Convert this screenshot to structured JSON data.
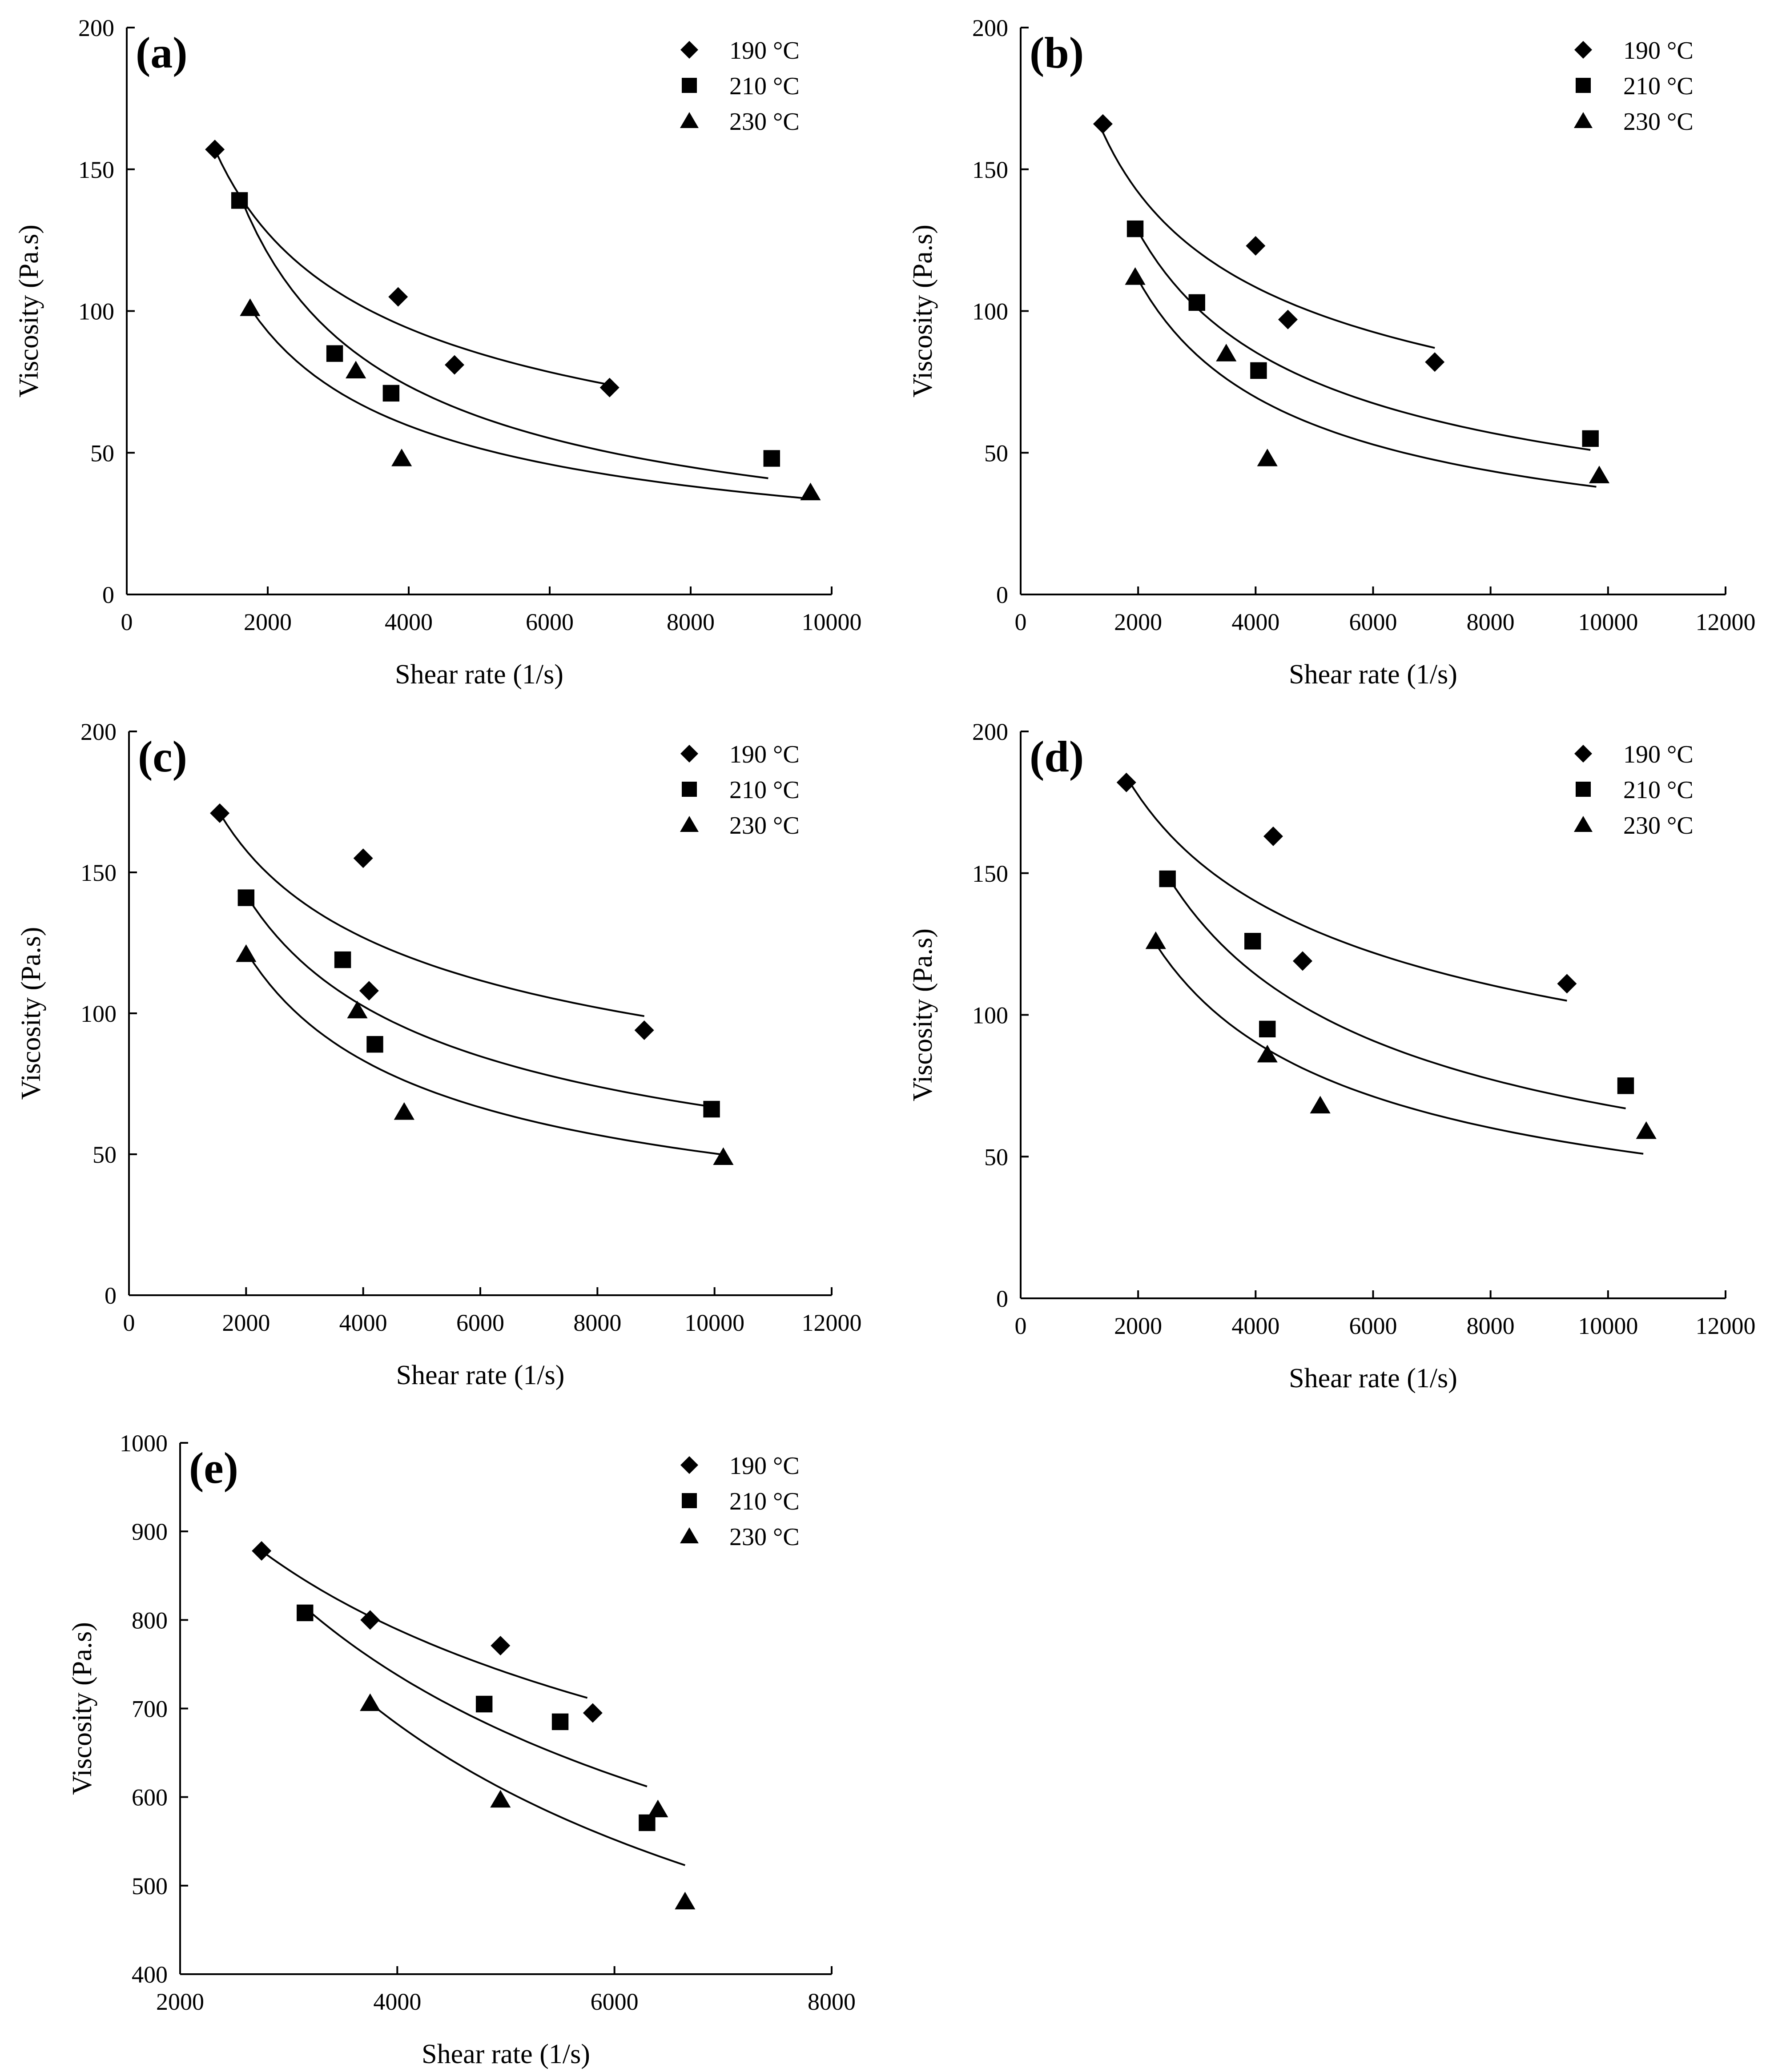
{
  "chart_data": [
    {
      "type": "scatter",
      "panel_label": "(a)",
      "xlabel": "Shear rate (1/s)",
      "ylabel": "Viscosity (Pa.s)",
      "xlim": [
        0,
        10000
      ],
      "ylim": [
        0,
        200
      ],
      "xticks": [
        0,
        2000,
        4000,
        6000,
        8000,
        10000
      ],
      "yticks": [
        0,
        50,
        100,
        150,
        200
      ],
      "legend_position": "top-right",
      "series": [
        {
          "name": "190 °C",
          "marker": "diamond",
          "points": [
            [
              1250,
              157
            ],
            [
              3850,
              105
            ],
            [
              4650,
              81
            ],
            [
              6850,
              73
            ]
          ],
          "fit": [
            [
              1250,
              157
            ],
            [
              6850,
              74
            ]
          ]
        },
        {
          "name": "210 °C",
          "marker": "square",
          "points": [
            [
              1600,
              139
            ],
            [
              2950,
              85
            ],
            [
              3750,
              71
            ],
            [
              9150,
              48
            ]
          ],
          "fit": [
            [
              1600,
              141
            ],
            [
              9100,
              41
            ]
          ]
        },
        {
          "name": "230 °C",
          "marker": "triangle",
          "points": [
            [
              1750,
              101
            ],
            [
              3250,
              79
            ],
            [
              3900,
              48
            ],
            [
              9700,
              36
            ]
          ],
          "fit": [
            [
              1750,
              101
            ],
            [
              9600,
              34
            ]
          ]
        }
      ]
    },
    {
      "type": "scatter",
      "panel_label": "(b)",
      "xlabel": "Shear rate (1/s)",
      "ylabel": "Viscosity (Pa.s)",
      "xlim": [
        0,
        12000
      ],
      "ylim": [
        0,
        200
      ],
      "xticks": [
        0,
        2000,
        4000,
        6000,
        8000,
        10000,
        12000
      ],
      "yticks": [
        0,
        50,
        100,
        150,
        200
      ],
      "legend_position": "top-right",
      "series": [
        {
          "name": "190 °C",
          "marker": "diamond",
          "points": [
            [
              1400,
              166
            ],
            [
              4000,
              123
            ],
            [
              4550,
              97
            ],
            [
              7050,
              82
            ]
          ],
          "fit": [
            [
              1400,
              163
            ],
            [
              7050,
              87
            ]
          ]
        },
        {
          "name": "210 °C",
          "marker": "square",
          "points": [
            [
              1950,
              129
            ],
            [
              3000,
              103
            ],
            [
              4050,
              79
            ],
            [
              9700,
              55
            ]
          ],
          "fit": [
            [
              1950,
              130
            ],
            [
              9700,
              51
            ]
          ]
        },
        {
          "name": "230 °C",
          "marker": "triangle",
          "points": [
            [
              1950,
              112
            ],
            [
              3500,
              85
            ],
            [
              4200,
              48
            ],
            [
              9850,
              42
            ]
          ],
          "fit": [
            [
              1950,
              113
            ],
            [
              9800,
              38
            ]
          ]
        }
      ]
    },
    {
      "type": "scatter",
      "panel_label": "(c)",
      "xlabel": "Shear rate (1/s)",
      "ylabel": "Viscosity (Pa.s)",
      "xlim": [
        0,
        12000
      ],
      "ylim": [
        0,
        200
      ],
      "xticks": [
        0,
        2000,
        4000,
        6000,
        8000,
        10000,
        12000
      ],
      "yticks": [
        0,
        50,
        100,
        150,
        200
      ],
      "legend_position": "top-right",
      "series": [
        {
          "name": "190 °C",
          "marker": "diamond",
          "points": [
            [
              1550,
              171
            ],
            [
              4000,
              155
            ],
            [
              4100,
              108
            ],
            [
              8800,
              94
            ]
          ],
          "fit": [
            [
              1550,
              171
            ],
            [
              8800,
              99
            ]
          ]
        },
        {
          "name": "210 °C",
          "marker": "square",
          "points": [
            [
              2000,
              141
            ],
            [
              3650,
              119
            ],
            [
              4200,
              89
            ],
            [
              9950,
              66
            ]
          ],
          "fit": [
            [
              2000,
              142
            ],
            [
              9900,
              67
            ]
          ]
        },
        {
          "name": "230 °C",
          "marker": "triangle",
          "points": [
            [
              2000,
              121
            ],
            [
              3900,
              101
            ],
            [
              4700,
              65
            ],
            [
              10150,
              49
            ]
          ],
          "fit": [
            [
              2000,
              122
            ],
            [
              10100,
              50
            ]
          ]
        }
      ]
    },
    {
      "type": "scatter",
      "panel_label": "(d)",
      "xlabel": "Shear rate (1/s)",
      "ylabel": "Viscosity (Pa.s)",
      "xlim": [
        0,
        12000
      ],
      "ylim": [
        0,
        200
      ],
      "xticks": [
        0,
        2000,
        4000,
        6000,
        8000,
        10000,
        12000
      ],
      "yticks": [
        0,
        50,
        100,
        150,
        200
      ],
      "legend_position": "top-right",
      "series": [
        {
          "name": "190 °C",
          "marker": "diamond",
          "points": [
            [
              1800,
              182
            ],
            [
              4300,
              163
            ],
            [
              4800,
              119
            ],
            [
              9300,
              111
            ]
          ],
          "fit": [
            [
              1800,
              184
            ],
            [
              9300,
              105
            ]
          ]
        },
        {
          "name": "210 °C",
          "marker": "square",
          "points": [
            [
              2500,
              148
            ],
            [
              3950,
              126
            ],
            [
              4200,
              95
            ],
            [
              10300,
              75
            ]
          ],
          "fit": [
            [
              2500,
              149
            ],
            [
              10300,
              67
            ]
          ]
        },
        {
          "name": "230 °C",
          "marker": "triangle",
          "points": [
            [
              2300,
              126
            ],
            [
              4200,
              86
            ],
            [
              5100,
              68
            ],
            [
              10650,
              59
            ]
          ],
          "fit": [
            [
              2300,
              125
            ],
            [
              10600,
              51
            ]
          ]
        }
      ]
    },
    {
      "type": "scatter",
      "panel_label": "(e)",
      "xlabel": "Shear rate (1/s)",
      "ylabel": "Viscosity (Pa.s)",
      "xlim": [
        2000,
        8000
      ],
      "ylim": [
        400,
        1000
      ],
      "xticks": [
        2000,
        4000,
        6000,
        8000
      ],
      "yticks": [
        400,
        500,
        600,
        700,
        800,
        900,
        1000
      ],
      "legend_position": "top-right",
      "series": [
        {
          "name": "190 °C",
          "marker": "diamond",
          "points": [
            [
              2750,
              878
            ],
            [
              3750,
              800
            ],
            [
              4950,
              771
            ],
            [
              5800,
              695
            ]
          ],
          "fit": [
            [
              2750,
              878
            ],
            [
              5750,
              712
            ]
          ]
        },
        {
          "name": "210 °C",
          "marker": "square",
          "points": [
            [
              3150,
              808
            ],
            [
              4800,
              705
            ],
            [
              5500,
              685
            ],
            [
              6300,
              571
            ]
          ],
          "fit": [
            [
              3150,
              814
            ],
            [
              6300,
              612
            ]
          ]
        },
        {
          "name": "230 °C",
          "marker": "triangle",
          "points": [
            [
              3750,
              706
            ],
            [
              4950,
              597
            ],
            [
              6400,
              586
            ],
            [
              6650,
              482
            ]
          ],
          "fit": [
            [
              3750,
              706
            ],
            [
              6650,
              523
            ]
          ]
        }
      ]
    }
  ]
}
